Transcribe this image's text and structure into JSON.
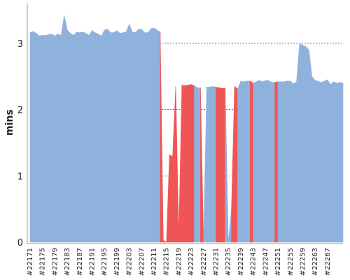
{
  "colors": {
    "stable": "#8fb2dd",
    "failed": "#f05555",
    "grid": "#555555",
    "axis": "#999999"
  },
  "chart_data": {
    "type": "area",
    "ylabel": "mins",
    "ylim": [
      0,
      3.6
    ],
    "yticks": [
      0,
      1,
      2,
      3
    ],
    "grid": true,
    "xticks": [
      "#22171",
      "#22175",
      "#22179",
      "#22183",
      "#22187",
      "#22191",
      "#22195",
      "#22199",
      "#22203",
      "#22207",
      "#22211",
      "#22215",
      "#22219",
      "#22223",
      "#22227",
      "#22231",
      "#22235",
      "#22239",
      "#22243",
      "#22247",
      "#22251",
      "#22255",
      "#22259",
      "#22263",
      "#22267"
    ],
    "x_start": 22171,
    "series": [
      {
        "values": [
          3.16,
          3.18,
          3.15,
          3.11,
          3.12,
          3.12,
          3.13,
          3.14,
          3.11,
          3.14,
          3.12,
          3.42,
          3.2,
          3.15,
          3.12,
          3.17,
          3.16,
          3.17,
          3.15,
          3.12,
          3.19,
          3.16,
          3.14,
          3.11,
          3.2,
          3.21,
          3.16,
          3.16,
          3.19,
          3.15,
          3.16,
          3.17,
          3.29,
          3.17,
          3.16,
          3.21,
          3.21,
          3.16,
          3.16,
          3.22,
          3.23,
          3.2,
          3.17,
          0.03,
          0.0,
          1.32,
          1.29,
          2.35,
          0.1,
          2.37,
          2.36,
          2.37,
          2.38,
          2.36,
          2.33,
          2.33,
          0.0,
          2.34,
          2.34,
          2.35,
          2.34,
          2.33,
          2.32,
          2.32,
          0.0,
          0.5,
          2.35,
          2.31,
          2.43,
          2.42,
          2.43,
          2.43,
          2.4,
          2.42,
          2.44,
          2.42,
          2.44,
          2.44,
          2.41,
          2.41,
          2.42,
          2.42,
          2.42,
          2.43,
          2.43,
          2.39,
          2.42,
          3.0,
          2.97,
          2.95,
          2.9,
          2.5,
          2.44,
          2.43,
          2.41,
          2.43,
          2.45,
          2.38,
          2.42,
          2.4,
          2.41,
          2.4
        ],
        "status": [
          "ok",
          "ok",
          "ok",
          "ok",
          "ok",
          "ok",
          "ok",
          "ok",
          "ok",
          "ok",
          "ok",
          "ok",
          "ok",
          "ok",
          "ok",
          "ok",
          "ok",
          "ok",
          "ok",
          "ok",
          "ok",
          "ok",
          "ok",
          "ok",
          "ok",
          "ok",
          "ok",
          "ok",
          "ok",
          "ok",
          "ok",
          "ok",
          "ok",
          "ok",
          "ok",
          "ok",
          "ok",
          "ok",
          "ok",
          "ok",
          "ok",
          "ok",
          "ok",
          "fail",
          "fail",
          "fail",
          "fail",
          "fail",
          "fail",
          "fail",
          "fail",
          "fail",
          "fail",
          "fail",
          "ok",
          "ok",
          "fail",
          "ok",
          "ok",
          "ok",
          "ok",
          "fail",
          "fail",
          "fail",
          "ok",
          "ok",
          "fail",
          "fail",
          "ok",
          "ok",
          "ok",
          "ok",
          "fail",
          "ok",
          "ok",
          "ok",
          "ok",
          "ok",
          "ok",
          "ok",
          "fail",
          "ok",
          "ok",
          "ok",
          "ok",
          "ok",
          "ok",
          "ok",
          "ok",
          "ok",
          "ok",
          "ok",
          "ok",
          "ok",
          "ok",
          "ok",
          "ok",
          "ok",
          "ok",
          "ok",
          "ok",
          "ok"
        ]
      }
    ]
  }
}
